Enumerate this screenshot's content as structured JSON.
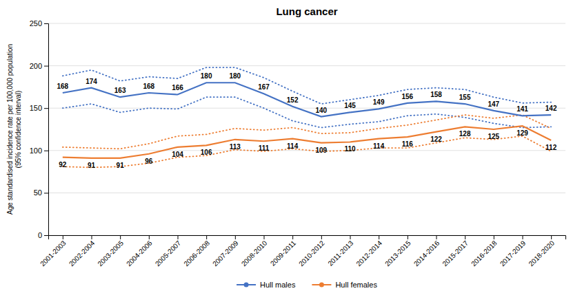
{
  "chart_data": {
    "type": "line",
    "title": "Lung cancer",
    "ylabel": "Age standardised incidence rate per 100,000 population\n(95% confidence interval)",
    "categories": [
      "2001-2003",
      "2002-2004",
      "2003-2005",
      "2004-2006",
      "2005-2007",
      "2006-2008",
      "2007-2009",
      "2008-2010",
      "2009-2011",
      "2010-2012",
      "2011-2013",
      "2012-2014",
      "2013-2015",
      "2014-2016",
      "2015-2017",
      "2016-2018",
      "2017-2019",
      "2018-2020"
    ],
    "series": [
      {
        "name": "Hull males",
        "color": "#4472C4",
        "values": [
          168,
          174,
          163,
          168,
          166,
          180,
          180,
          167,
          152,
          140,
          145,
          149,
          156,
          158,
          155,
          147,
          141,
          142
        ],
        "ci_upper": [
          188,
          195,
          182,
          187,
          185,
          198,
          198,
          186,
          170,
          155,
          160,
          165,
          172,
          174,
          172,
          163,
          156,
          157
        ],
        "ci_lower": [
          150,
          155,
          145,
          150,
          149,
          163,
          163,
          150,
          135,
          127,
          131,
          134,
          141,
          143,
          139,
          132,
          127,
          128
        ]
      },
      {
        "name": "Hull females",
        "color": "#ED7D31",
        "values": [
          92,
          91,
          91,
          96,
          104,
          106,
          113,
          111,
          114,
          109,
          110,
          114,
          116,
          122,
          128,
          125,
          129,
          112
        ],
        "ci_upper": [
          104,
          103,
          102,
          108,
          117,
          119,
          126,
          124,
          127,
          120,
          121,
          126,
          130,
          136,
          142,
          138,
          142,
          126
        ],
        "ci_lower": [
          81,
          80,
          81,
          85,
          92,
          94,
          101,
          99,
          102,
          99,
          100,
          103,
          103,
          109,
          115,
          113,
          117,
          99
        ]
      }
    ],
    "ylim": [
      0,
      250
    ],
    "yticks": [
      0,
      50,
      100,
      150,
      200,
      250
    ],
    "grid": true,
    "data_labels": true,
    "legend": "bottom"
  }
}
